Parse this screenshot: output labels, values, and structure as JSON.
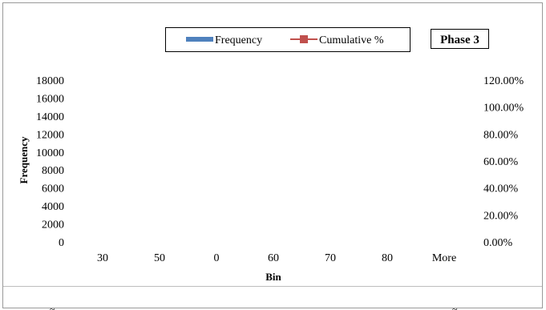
{
  "chart_data": {
    "type": "bar",
    "title": "",
    "xlabel": "Bin",
    "ylabel": "Frequency",
    "categories": [
      "30",
      "50",
      "0",
      "60",
      "70",
      "80",
      "More"
    ],
    "series": [
      {
        "name": "Frequency",
        "kind": "bar",
        "axis": "left",
        "color": "#4f81bd",
        "values": [
          0,
          0,
          0,
          0,
          0,
          0,
          0
        ]
      },
      {
        "name": "Cumulative %",
        "kind": "line",
        "axis": "right",
        "color": "#c0504d",
        "values": [
          0,
          0,
          0,
          0,
          0,
          0,
          0
        ]
      }
    ],
    "ylim": [
      0,
      18000
    ],
    "yticks": [
      "0",
      "2000",
      "4000",
      "6000",
      "8000",
      "10000",
      "12000",
      "14000",
      "16000",
      "18000"
    ],
    "y2lim": [
      0,
      1.2
    ],
    "y2ticks": [
      "0.00%",
      "20.00%",
      "40.00%",
      "60.00%",
      "80.00%",
      "100.00%",
      "120.00%"
    ],
    "grid": false,
    "legend_position": "top-center",
    "annotations": [
      "Phase 3"
    ]
  }
}
